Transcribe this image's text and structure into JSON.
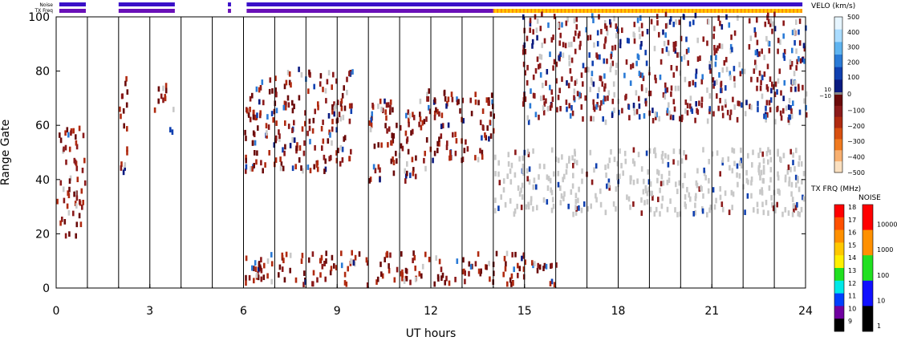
{
  "status_bars": {
    "noise_label": "Noise",
    "txfreq_label": "TX Freq"
  },
  "chart_data": {
    "type": "heatmap",
    "xlabel": "UT hours",
    "ylabel": "Range Gate",
    "xlim": [
      0,
      24
    ],
    "ylim": [
      0,
      100
    ],
    "x_ticks": [
      0,
      3,
      6,
      9,
      12,
      15,
      18,
      21,
      24
    ],
    "x_tick_labels": [
      "0",
      "3",
      "6",
      "9",
      "12",
      "15",
      "18",
      "21",
      "24"
    ],
    "y_ticks": [
      0,
      20,
      40,
      60,
      80,
      100
    ],
    "y_tick_labels": [
      "0",
      "20",
      "40",
      "60",
      "80",
      "100"
    ],
    "vertical_lines_ut": [
      1,
      2,
      3,
      4,
      5,
      6,
      7,
      8,
      9,
      10,
      11,
      12,
      13,
      14,
      15,
      16,
      17,
      18,
      19,
      20,
      21,
      22,
      23,
      24
    ],
    "data_gaps_ut": [
      [
        1,
        2
      ],
      [
        4,
        5.5
      ],
      [
        5.6,
        6
      ]
    ],
    "noise_bar_segments_ut": [
      [
        0.1,
        0.95
      ],
      [
        2.0,
        3.8
      ],
      [
        5.5,
        5.6
      ],
      [
        6.1,
        23.9
      ]
    ],
    "txfreq_bar_segments_ut": [
      [
        0.1,
        0.95
      ],
      [
        2.0,
        3.8
      ],
      [
        5.5,
        5.6
      ],
      [
        6.1,
        14.0
      ],
      [
        14.0,
        23.9
      ]
    ],
    "velocity_scale": {
      "title": "VELO (km/s)",
      "ticks": [
        500,
        400,
        300,
        200,
        100,
        0,
        -100,
        -200,
        -300,
        -400,
        -500
      ],
      "tick_labels": [
        "500",
        "400",
        "300",
        "200",
        "100",
        "0",
        "−100",
        "−200",
        "−300",
        "−400",
        "−500"
      ],
      "ground_scatter_labels": [
        "10",
        "−10"
      ],
      "colors_positive": [
        "#e6f5ff",
        "#aadcff",
        "#5fb4f0",
        "#2a7ad6",
        "#1040b0",
        "#0a1a80"
      ],
      "colors_negative": [
        "#6a0a0a",
        "#8b1a1a",
        "#b02a10",
        "#d85010",
        "#f07a20",
        "#f8b070",
        "#fbe0c0"
      ]
    },
    "txfreq_scale": {
      "title": "TX FRQ (MHz)",
      "tick_labels": [
        "18",
        "17",
        "16",
        "15",
        "14",
        "13",
        "12",
        "11",
        "10",
        "9"
      ],
      "colors": [
        "#ff0000",
        "#ff5000",
        "#ff9000",
        "#ffc800",
        "#fff000",
        "#20e020",
        "#00e8e8",
        "#0040ff",
        "#7000a0",
        "#000000"
      ]
    },
    "noise_scale": {
      "title": "NOISE",
      "tick_labels": [
        "10000",
        "1000",
        "100",
        "10",
        "1"
      ],
      "colors": [
        "#ff0000",
        "#ff9000",
        "#20e020",
        "#1010ff",
        "#000000"
      ]
    },
    "ground_scatter_color": "#c8c8c8",
    "scatter_regions": [
      {
        "ut": [
          0.0,
          0.9
        ],
        "gates": [
          18,
          58
        ],
        "type": "negative"
      },
      {
        "ut": [
          2.0,
          2.3
        ],
        "gates": [
          40,
          78
        ],
        "type": "negative"
      },
      {
        "ut": [
          3.0,
          3.5
        ],
        "gates": [
          64,
          76
        ],
        "type": "negative"
      },
      {
        "ut": [
          3.6,
          3.8
        ],
        "gates": [
          56,
          65
        ],
        "type": "negative"
      },
      {
        "ut": [
          6.0,
          9.5
        ],
        "gates": [
          42,
          80
        ],
        "type": "negative"
      },
      {
        "ut": [
          10.0,
          11.8
        ],
        "gates": [
          38,
          68
        ],
        "type": "negative"
      },
      {
        "ut": [
          11.8,
          14.0
        ],
        "gates": [
          46,
          72
        ],
        "type": "negative"
      },
      {
        "ut": [
          14.0,
          24.0
        ],
        "gates": [
          26,
          50
        ],
        "type": "ground"
      },
      {
        "ut": [
          14.9,
          24.0
        ],
        "gates": [
          60,
          100
        ],
        "type": "mixed"
      },
      {
        "ut": [
          6.0,
          16.0
        ],
        "gates": [
          0,
          12
        ],
        "type": "negative"
      }
    ]
  }
}
